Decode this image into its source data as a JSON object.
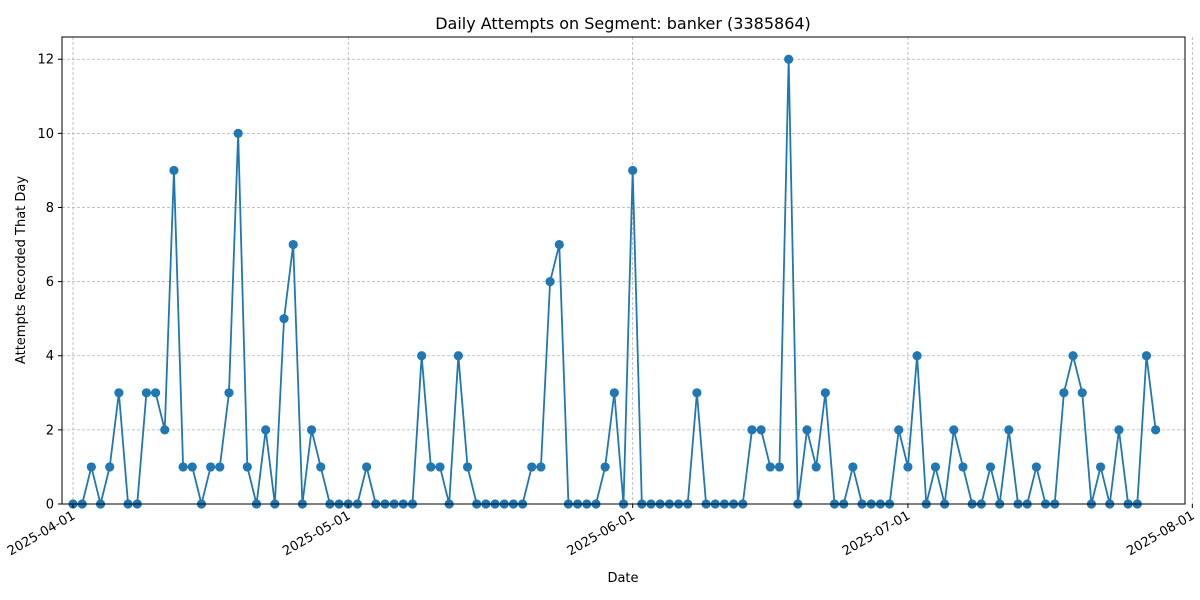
{
  "chart_data": {
    "type": "line",
    "title": "Daily Attempts on Segment: banker (3385864)",
    "xlabel": "Date",
    "ylabel": "Attempts Recorded That Day",
    "x_start_date": "2025-04-01",
    "x_range_days": [
      -1.2,
      121.2
    ],
    "ylim": [
      0,
      12.6
    ],
    "grid": true,
    "color": "#1f77b4",
    "marker": "circle",
    "x_ticks": [
      {
        "day": 0,
        "label": "2025-04-01"
      },
      {
        "day": 30,
        "label": "2025-05-01"
      },
      {
        "day": 61,
        "label": "2025-06-01"
      },
      {
        "day": 91,
        "label": "2025-07-01"
      },
      {
        "day": 122,
        "label": "2025-08-01"
      }
    ],
    "y_ticks": [
      0,
      2,
      4,
      6,
      8,
      10,
      12
    ],
    "values": [
      0,
      0,
      1,
      0,
      1,
      3,
      0,
      0,
      3,
      3,
      2,
      9,
      1,
      1,
      0,
      1,
      1,
      3,
      10,
      1,
      0,
      2,
      0,
      5,
      7,
      0,
      2,
      1,
      0,
      0,
      0,
      0,
      1,
      0,
      0,
      0,
      0,
      0,
      4,
      1,
      1,
      0,
      4,
      1,
      0,
      0,
      0,
      0,
      0,
      0,
      1,
      1,
      6,
      7,
      0,
      0,
      0,
      0,
      1,
      3,
      0,
      9,
      0,
      0,
      0,
      0,
      0,
      0,
      3,
      0,
      0,
      0,
      0,
      0,
      2,
      2,
      1,
      1,
      12,
      0,
      2,
      1,
      3,
      0,
      0,
      1,
      0,
      0,
      0,
      0,
      2,
      1,
      4,
      0,
      1,
      0,
      2,
      1,
      0,
      0,
      1,
      0,
      2,
      0,
      0,
      1,
      0,
      0,
      3,
      4,
      3,
      0,
      1,
      0,
      2,
      0,
      0,
      4,
      2
    ]
  }
}
